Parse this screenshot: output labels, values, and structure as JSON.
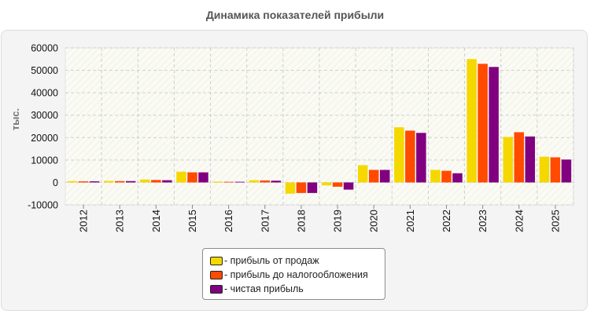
{
  "chart_data": {
    "type": "bar",
    "title": "Динамика показателей прибыли",
    "ylabel": "тыс.",
    "xlabel": "",
    "ylim": [
      -10000,
      60000
    ],
    "yticks": [
      "60000",
      "50000",
      "40000",
      "30000",
      "20000",
      "10000",
      "0",
      "-10000"
    ],
    "grid": true,
    "legend_position": "bottom-center",
    "categories": [
      "2012",
      "2013",
      "2014",
      "2015",
      "2016",
      "2017",
      "2018",
      "2019",
      "2020",
      "2021",
      "2022",
      "2023",
      "2024",
      "2025"
    ],
    "series": [
      {
        "name": "прибыль от продаж",
        "color": "#f5d800",
        "values": [
          600,
          700,
          1300,
          4800,
          400,
          1000,
          -5000,
          -1300,
          7700,
          24600,
          5600,
          55000,
          20300,
          11500
        ]
      },
      {
        "name": "прибыль до налогообложения",
        "color": "#ff4a00",
        "values": [
          500,
          600,
          1100,
          4500,
          300,
          900,
          -4700,
          -1900,
          5600,
          23100,
          5200,
          52900,
          22400,
          11200
        ]
      },
      {
        "name": "чистая прибыль",
        "color": "#800080",
        "values": [
          500,
          600,
          1000,
          4500,
          300,
          800,
          -4700,
          -3200,
          5600,
          22100,
          4100,
          51500,
          20500,
          10200
        ]
      }
    ]
  }
}
